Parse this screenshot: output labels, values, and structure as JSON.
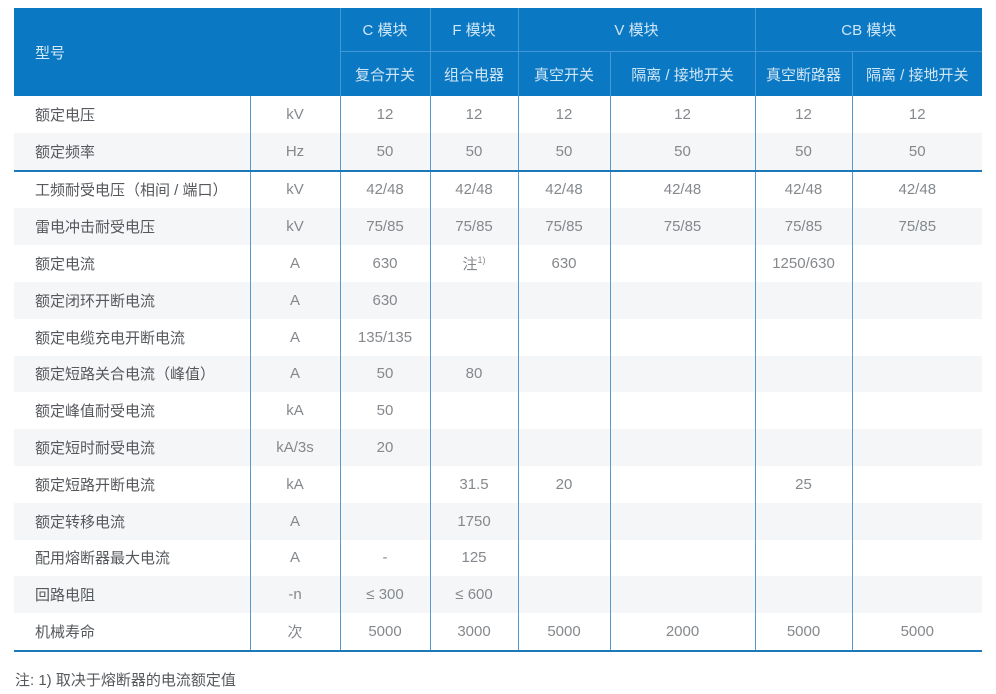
{
  "table": {
    "corner_label": "型号",
    "header_groups": [
      {
        "label": "C 模块",
        "colspan": 1
      },
      {
        "label": "F 模块",
        "colspan": 1
      },
      {
        "label": "V 模块",
        "colspan": 2
      },
      {
        "label": "CB 模块",
        "colspan": 2
      }
    ],
    "subheaders": [
      "复合开关",
      "组合电器",
      "真空开关",
      "隔离 / 接地开关",
      "真空断路器",
      "隔离 / 接地开关"
    ],
    "rows": [
      {
        "param": "额定电压",
        "unit": "kV",
        "values": [
          "12",
          "12",
          "12",
          "12",
          "12",
          "12"
        ]
      },
      {
        "param": "额定频率",
        "unit": "Hz",
        "values": [
          "50",
          "50",
          "50",
          "50",
          "50",
          "50"
        ]
      },
      {
        "param": "工频耐受电压（相间 / 端口）",
        "unit": "kV",
        "values": [
          "42/48",
          "42/48",
          "42/48",
          "42/48",
          "42/48",
          "42/48"
        ],
        "sep": true
      },
      {
        "param": "雷电冲击耐受电压",
        "unit": "kV",
        "values": [
          "75/85",
          "75/85",
          "75/85",
          "75/85",
          "75/85",
          "75/85"
        ]
      },
      {
        "param": "额定电流",
        "unit": "A",
        "values": [
          "630",
          "注^1)",
          "630",
          "",
          "1250/630",
          ""
        ]
      },
      {
        "param": "额定闭环开断电流",
        "unit": "A",
        "values": [
          "630",
          "",
          "",
          "",
          "",
          ""
        ]
      },
      {
        "param": "额定电缆充电开断电流",
        "unit": "A",
        "values": [
          "135/135",
          "",
          "",
          "",
          "",
          ""
        ]
      },
      {
        "param": "额定短路关合电流（峰值）",
        "unit": "A",
        "values": [
          "50",
          "80",
          "",
          "",
          "",
          ""
        ]
      },
      {
        "param": "额定峰值耐受电流",
        "unit": "kA",
        "values": [
          "50",
          "",
          "",
          "",
          "",
          ""
        ]
      },
      {
        "param": "额定短时耐受电流",
        "unit": "kA/3s",
        "values": [
          "20",
          "",
          "",
          "",
          "",
          ""
        ]
      },
      {
        "param": "额定短路开断电流",
        "unit": "kA",
        "values": [
          "",
          "31.5",
          "20",
          "",
          "25",
          ""
        ]
      },
      {
        "param": "额定转移电流",
        "unit": "A",
        "values": [
          "",
          "1750",
          "",
          "",
          "",
          ""
        ]
      },
      {
        "param": "配用熔断器最大电流",
        "unit": "A",
        "values": [
          "-",
          "125",
          "",
          "",
          "",
          ""
        ]
      },
      {
        "param": "回路电阻",
        "unit": "-n",
        "values": [
          "≤ 300",
          "≤ 600",
          "",
          "",
          "",
          ""
        ]
      },
      {
        "param": "机械寿命",
        "unit": "次",
        "values": [
          "5000",
          "3000",
          "5000",
          "2000",
          "5000",
          "5000"
        ]
      }
    ],
    "note": "注: 1) 取决于熔断器的电流额定值"
  },
  "colors": {
    "header_bg": "#0b78c3",
    "header_text": "#cfe6f6",
    "header_line": "#4398d6",
    "body_line": "#549ad2",
    "group_separator_line": "#1c78b8",
    "row_alt_bg": "#f5f6f7",
    "param_text": "#55585c",
    "value_text": "#85888c"
  }
}
